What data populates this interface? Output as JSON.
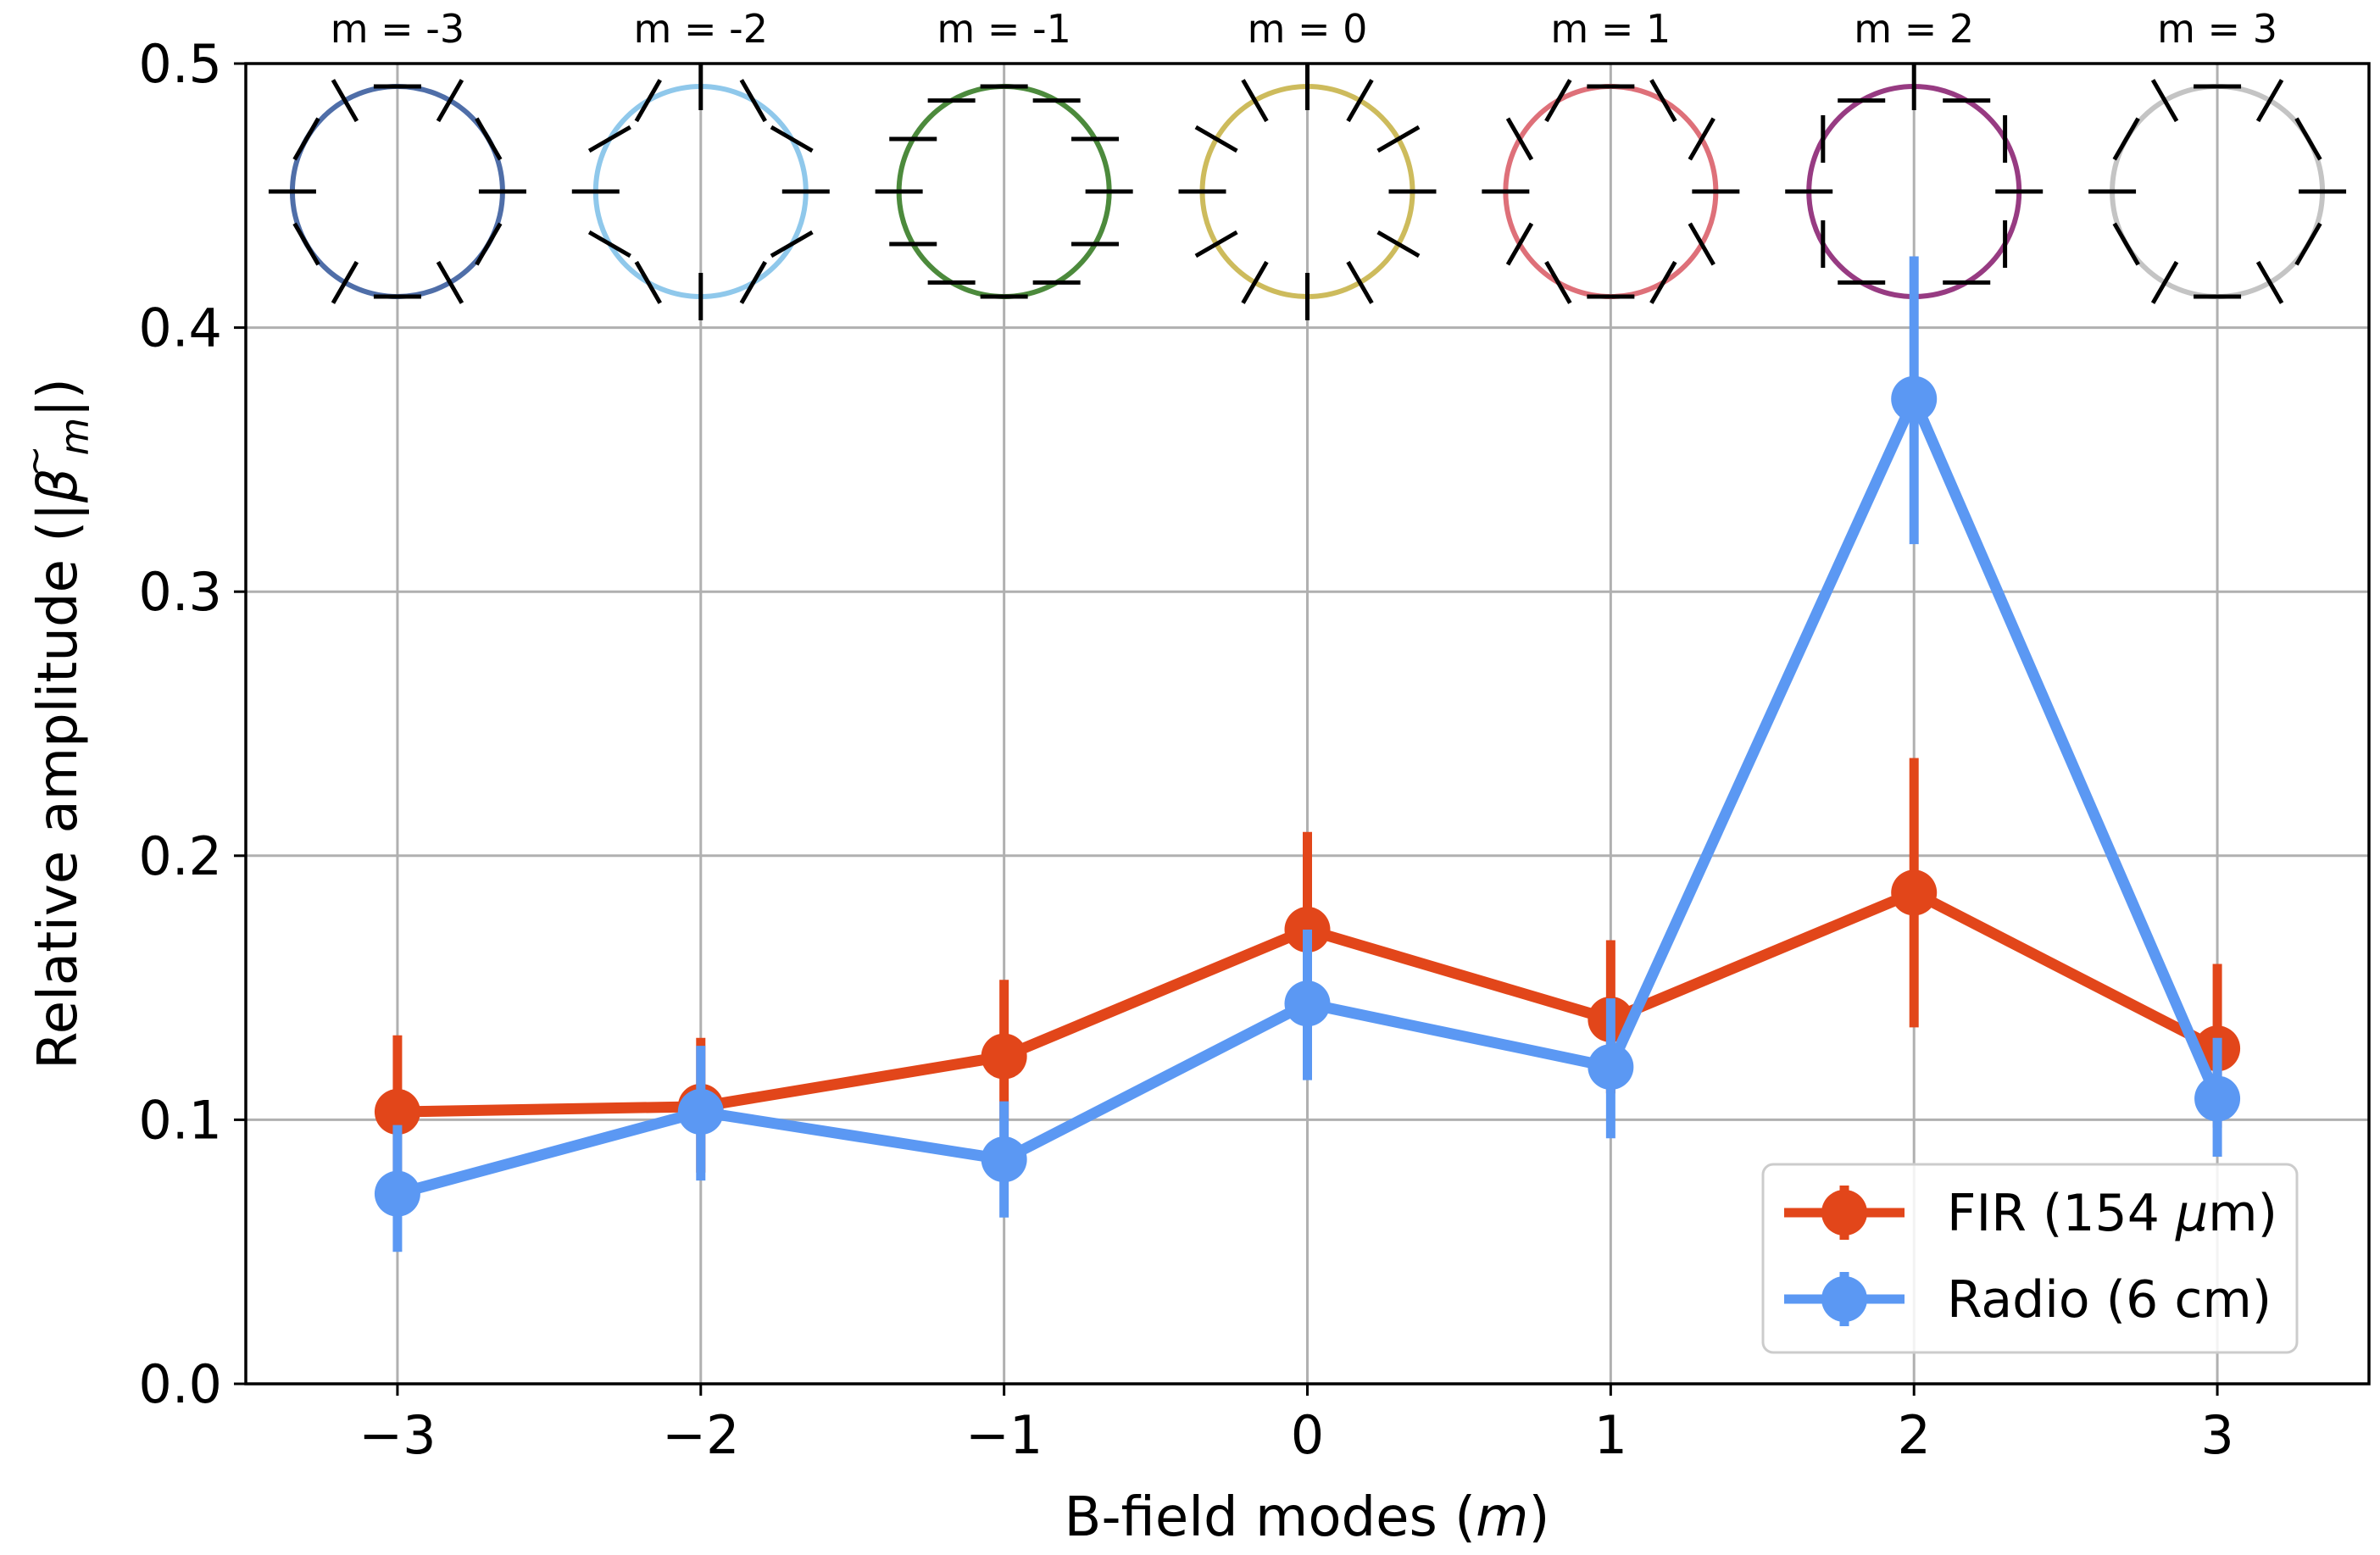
{
  "chart_data": {
    "type": "line",
    "xlabel": "B-field modes (m)",
    "xlabel_prefix": "B-field modes (",
    "xlabel_var": "m",
    "xlabel_suffix": ")",
    "ylabel": "Relative amplitude (|β̃m|)",
    "ylabel_text": "Relative amplitude (|",
    "ylabel_beta": "β",
    "ylabel_tilde": "~",
    "ylabel_sub": "m",
    "ylabel_close": "|)",
    "x": [
      -3,
      -2,
      -1,
      0,
      1,
      2,
      3
    ],
    "xlim": [
      -3.5,
      3.5
    ],
    "ylim": [
      0.0,
      0.5
    ],
    "x_ticks": [
      -3,
      -2,
      -1,
      0,
      1,
      2,
      3
    ],
    "x_tick_labels": [
      "−3",
      "−2",
      "−1",
      "0",
      "1",
      "2",
      "3"
    ],
    "y_ticks": [
      0.0,
      0.1,
      0.2,
      0.3,
      0.4,
      0.5
    ],
    "y_tick_labels": [
      "0.0",
      "0.1",
      "0.2",
      "0.3",
      "0.4",
      "0.5"
    ],
    "grid": true,
    "legend_position": "bottom-right",
    "series": [
      {
        "name": "FIR (154 μm)",
        "label_prefix": "FIR (154 ",
        "label_unit_greek": "μ",
        "label_suffix": "m)",
        "color": "#e2461a",
        "values": [
          0.103,
          0.105,
          0.124,
          0.172,
          0.138,
          0.186,
          0.127
        ],
        "err_low": [
          0.074,
          0.08,
          0.1,
          0.135,
          0.11,
          0.135,
          0.097
        ],
        "err_high": [
          0.132,
          0.131,
          0.153,
          0.209,
          0.168,
          0.237,
          0.159
        ]
      },
      {
        "name": "Radio (6 cm)",
        "color": "#5b98f3",
        "values": [
          0.072,
          0.103,
          0.085,
          0.144,
          0.12,
          0.373,
          0.108
        ],
        "err_low": [
          0.05,
          0.077,
          0.063,
          0.115,
          0.093,
          0.318,
          0.086
        ],
        "err_high": [
          0.098,
          0.128,
          0.107,
          0.172,
          0.146,
          0.427,
          0.131
        ]
      }
    ],
    "mode_insets": [
      {
        "label": "m = -3",
        "color": "#4f6ea8"
      },
      {
        "label": "m = -2",
        "color": "#8fc8eb"
      },
      {
        "label": "m = -1",
        "color": "#4c8a3c"
      },
      {
        "label": "m = 0",
        "color": "#cdbb5c"
      },
      {
        "label": "m = 1",
        "color": "#de7079"
      },
      {
        "label": "m = 2",
        "color": "#973b82"
      },
      {
        "label": "m = 3",
        "color": "#c4c4c4"
      }
    ]
  }
}
